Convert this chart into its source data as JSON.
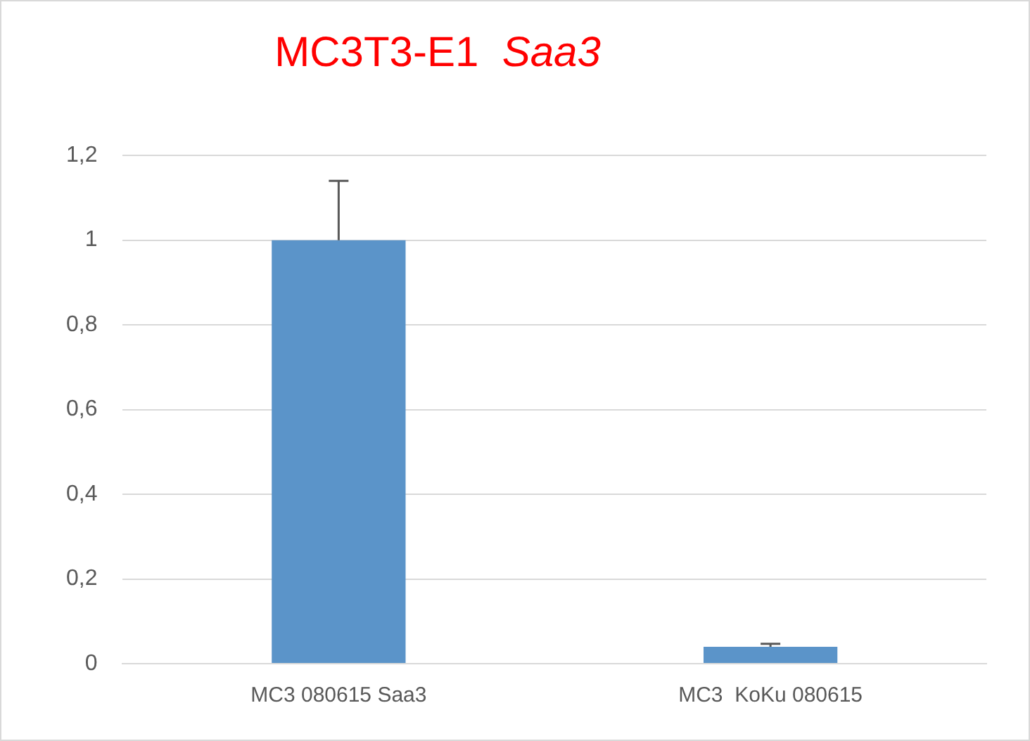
{
  "chart_data": {
    "type": "bar",
    "title": "MC3T3-E1  Saa3",
    "categories": [
      "MC3 080615 Saa3",
      "MC3  KoKu 080615"
    ],
    "values": [
      1,
      0.04
    ],
    "errors": [
      [
        1,
        1.14
      ],
      [
        0.04,
        0.047
      ]
    ],
    "color": "#5b94c9",
    "ylim": [
      0,
      1.2
    ],
    "yticks": [
      {
        "value": 0,
        "label": "0"
      },
      {
        "value": 0.2,
        "label": "0,2"
      },
      {
        "value": 0.4,
        "label": "0,4"
      },
      {
        "value": 0.6,
        "label": "0,6"
      },
      {
        "value": 0.8,
        "label": "0,8"
      },
      {
        "value": 1,
        "label": "1"
      },
      {
        "value": 1.2,
        "label": "1,2"
      }
    ],
    "grid": "y",
    "legend": false
  }
}
